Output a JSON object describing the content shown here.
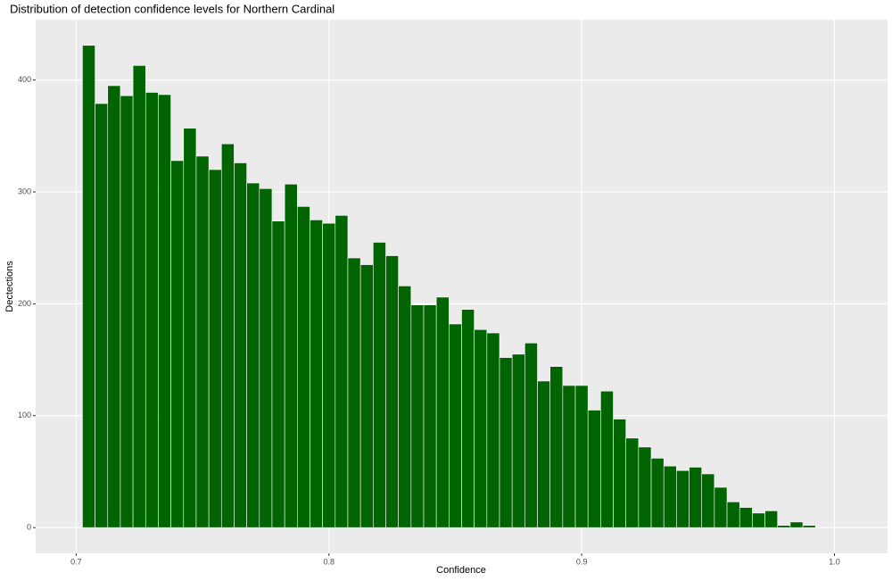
{
  "chart_data": {
    "type": "histogram",
    "title": "Distribution of detection confidence levels for Northern Cardinal",
    "x_label": "Confidence",
    "y_label": "Dectections",
    "bins": [
      0.7025,
      0.7075,
      0.7125,
      0.7175,
      0.7225,
      0.7275,
      0.7325,
      0.7375,
      0.7425,
      0.7475,
      0.7525,
      0.7575,
      0.7625,
      0.7675,
      0.7725,
      0.7775,
      0.7825,
      0.7875,
      0.7925,
      0.7975,
      0.8025,
      0.8075,
      0.8125,
      0.8175,
      0.8225,
      0.8275,
      0.8325,
      0.8375,
      0.8425,
      0.8475,
      0.8525,
      0.8575,
      0.8625,
      0.8675,
      0.8725,
      0.8775,
      0.8825,
      0.8875,
      0.8925,
      0.8975,
      0.9025,
      0.9075,
      0.9125,
      0.9175,
      0.9225,
      0.9275,
      0.9325,
      0.9375,
      0.9425,
      0.9475,
      0.9525,
      0.9575,
      0.9625,
      0.9675,
      0.9725,
      0.9775,
      0.9825,
      0.9875,
      0.9925
    ],
    "values": [
      431,
      379,
      395,
      386,
      413,
      389,
      387,
      328,
      357,
      332,
      320,
      343,
      326,
      308,
      303,
      274,
      307,
      287,
      275,
      272,
      279,
      241,
      235,
      255,
      243,
      216,
      199,
      199,
      206,
      182,
      195,
      177,
      174,
      152,
      155,
      165,
      131,
      144,
      127,
      127,
      105,
      122,
      97,
      80,
      72,
      62,
      55,
      51,
      54,
      48,
      36,
      23,
      18,
      13,
      15,
      2,
      5,
      2
    ],
    "color": "#006400",
    "xlim": [
      0.684,
      1.021
    ],
    "ylim": [
      -23,
      454
    ],
    "xticks": [
      0.7,
      0.8,
      0.9,
      {
        "value": 1.0,
        "label": "1.0"
      }
    ],
    "yticks": [
      0,
      100,
      200,
      300,
      400
    ],
    "grid": true
  }
}
